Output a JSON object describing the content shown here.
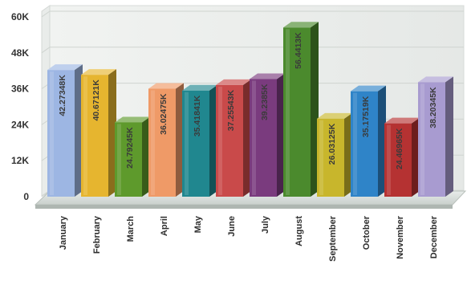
{
  "chart_data": {
    "type": "bar",
    "categories": [
      "January",
      "February",
      "March",
      "April",
      "May",
      "June",
      "July",
      "August",
      "September",
      "October",
      "November",
      "December"
    ],
    "values": [
      42.27348,
      40.67121,
      24.79245,
      36.02475,
      35.41841,
      37.25543,
      39.2385,
      56.4413,
      26.03125,
      35.17519,
      24.46965,
      38.20345
    ],
    "value_labels": [
      "42.27348K",
      "40.67121K",
      "24.79245K",
      "36.02475K",
      "35.41841K",
      "37.25543K",
      "39.2385K",
      "56.4413K",
      "26.03125K",
      "35.17519K",
      "24.46965K",
      "38.20345K"
    ],
    "colors": [
      "#9db6e3",
      "#e6b52f",
      "#5e9a2c",
      "#ef9a67",
      "#20878f",
      "#c94a4a",
      "#7a3b7e",
      "#4b8a2d",
      "#c8b62c",
      "#2f84c8",
      "#b53232",
      "#a89bd0"
    ],
    "y_ticks": [
      "0",
      "12K",
      "24K",
      "36K",
      "48K",
      "60K"
    ],
    "ylim": [
      0,
      60
    ],
    "title": "",
    "xlabel": "",
    "ylabel": "",
    "grid": true,
    "legend": "none"
  }
}
